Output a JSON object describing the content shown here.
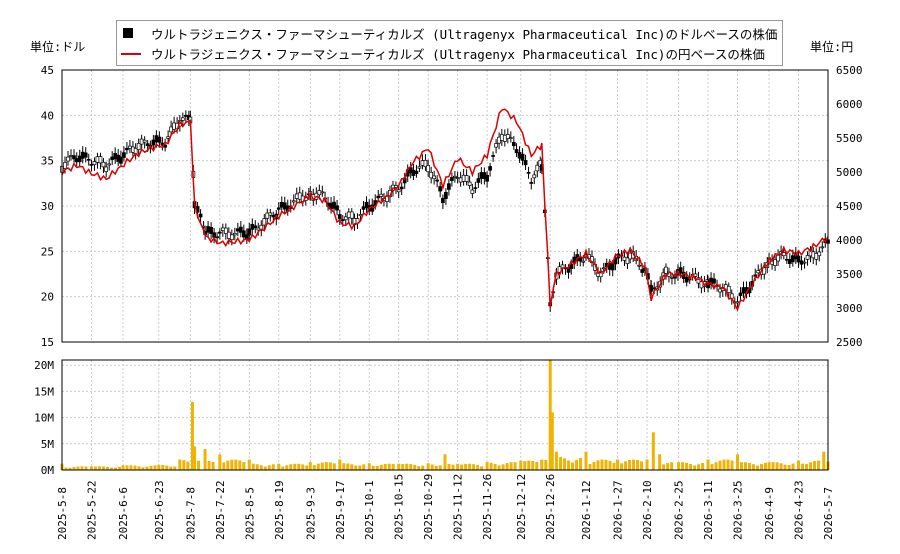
{
  "chart_data": [
    {
      "type": "candlestick",
      "legend": {
        "entries": [
          "ウルトラジェニクス・ファーマシューティカルズ (Ultragenyx Pharmaceutical Inc)のドルベースの株価",
          "ウルトラジェニクス・ファーマシューティカルズ (Ultragenyx Pharmaceutical Inc)の円ベースの株価"
        ],
        "placement": "top-center"
      },
      "left_axis": {
        "unit_label": "単位:ドル",
        "range": [
          15,
          45
        ],
        "ticks": [
          "15",
          "20",
          "25",
          "30",
          "35",
          "40",
          "45"
        ]
      },
      "right_axis": {
        "unit_label": "単位:円",
        "range": [
          2500,
          6500
        ],
        "ticks": [
          "2500",
          "3000",
          "3500",
          "4000",
          "4500",
          "5000",
          "5500",
          "6000",
          "6500"
        ]
      },
      "grid": true,
      "series": [
        {
          "name": "ウルトラジェニクス・ファーマシューティカルズ (Ultragenyx Pharmaceutical Inc)のドルベースの株価",
          "color": "#000000",
          "points": [
            [
              "2025-05-08",
              34.5
            ],
            [
              "2025-05-15",
              35.5
            ],
            [
              "2025-05-22",
              35.0
            ],
            [
              "2025-05-29",
              34.5
            ],
            [
              "2025-06-05",
              35.5
            ],
            [
              "2025-06-12",
              36.5
            ],
            [
              "2025-06-19",
              37.0
            ],
            [
              "2025-06-26",
              37.0
            ],
            [
              "2025-07-03",
              39.5
            ],
            [
              "2025-07-08",
              39.5
            ],
            [
              "2025-07-10",
              30.5
            ],
            [
              "2025-07-15",
              27.0
            ],
            [
              "2025-07-22",
              27.0
            ],
            [
              "2025-08-05",
              27.0
            ],
            [
              "2025-08-19",
              29.5
            ],
            [
              "2025-09-03",
              31.5
            ],
            [
              "2025-09-10",
              31.0
            ],
            [
              "2025-09-17",
              29.0
            ],
            [
              "2025-09-24",
              28.5
            ],
            [
              "2025-10-01",
              30.0
            ],
            [
              "2025-10-08",
              31.0
            ],
            [
              "2025-10-15",
              32.0
            ],
            [
              "2025-10-22",
              34.0
            ],
            [
              "2025-10-29",
              34.5
            ],
            [
              "2025-11-05",
              31.0
            ],
            [
              "2025-11-12",
              33.5
            ],
            [
              "2025-11-19",
              32.0
            ],
            [
              "2025-11-26",
              33.5
            ],
            [
              "2025-12-03",
              38.0
            ],
            [
              "2025-12-10",
              36.5
            ],
            [
              "2025-12-17",
              33.0
            ],
            [
              "2025-12-22",
              34.5
            ],
            [
              "2025-12-26",
              19.5
            ],
            [
              "2025-12-29",
              22.5
            ],
            [
              "2026-01-05",
              23.5
            ],
            [
              "2026-01-12",
              24.5
            ],
            [
              "2026-01-19",
              22.5
            ],
            [
              "2026-01-26",
              24.0
            ],
            [
              "2026-02-02",
              24.5
            ],
            [
              "2026-02-09",
              23.0
            ],
            [
              "2026-02-12",
              20.5
            ],
            [
              "2026-02-19",
              22.5
            ],
            [
              "2026-02-26",
              22.5
            ],
            [
              "2026-03-05",
              22.0
            ],
            [
              "2026-03-11",
              21.5
            ],
            [
              "2026-03-18",
              21.0
            ],
            [
              "2026-03-25",
              19.5
            ],
            [
              "2026-04-01",
              21.5
            ],
            [
              "2026-04-09",
              24.0
            ],
            [
              "2026-04-16",
              24.5
            ],
            [
              "2026-04-23",
              24.0
            ],
            [
              "2026-04-30",
              24.5
            ],
            [
              "2026-05-07",
              26.0
            ]
          ]
        },
        {
          "name": "ウルトラジェニクス・ファーマシューティカルズ (Ultragenyx Pharmaceutical Inc)の円ベースの株価",
          "color": "#dd0000",
          "points": [
            [
              "2025-05-08",
              5000
            ],
            [
              "2025-05-15",
              5100
            ],
            [
              "2025-05-22",
              4980
            ],
            [
              "2025-05-29",
              4900
            ],
            [
              "2025-06-05",
              5080
            ],
            [
              "2025-06-12",
              5250
            ],
            [
              "2025-06-19",
              5350
            ],
            [
              "2025-06-26",
              5400
            ],
            [
              "2025-07-03",
              5700
            ],
            [
              "2025-07-08",
              5730
            ],
            [
              "2025-07-10",
              4500
            ],
            [
              "2025-07-15",
              4050
            ],
            [
              "2025-07-22",
              3950
            ],
            [
              "2025-08-05",
              4000
            ],
            [
              "2025-08-19",
              4350
            ],
            [
              "2025-09-03",
              4650
            ],
            [
              "2025-09-10",
              4580
            ],
            [
              "2025-09-17",
              4250
            ],
            [
              "2025-09-24",
              4200
            ],
            [
              "2025-10-01",
              4450
            ],
            [
              "2025-10-08",
              4600
            ],
            [
              "2025-10-15",
              4800
            ],
            [
              "2025-10-22",
              5150
            ],
            [
              "2025-10-29",
              5350
            ],
            [
              "2025-11-05",
              4800
            ],
            [
              "2025-11-12",
              5200
            ],
            [
              "2025-11-19",
              5000
            ],
            [
              "2025-11-26",
              5250
            ],
            [
              "2025-12-03",
              5950
            ],
            [
              "2025-12-10",
              5750
            ],
            [
              "2025-12-17",
              5250
            ],
            [
              "2025-12-22",
              5400
            ],
            [
              "2025-12-26",
              3050
            ],
            [
              "2025-12-29",
              3500
            ],
            [
              "2026-01-05",
              3650
            ],
            [
              "2026-01-12",
              3800
            ],
            [
              "2026-01-19",
              3500
            ],
            [
              "2026-01-26",
              3750
            ],
            [
              "2026-02-02",
              3850
            ],
            [
              "2026-02-09",
              3600
            ],
            [
              "2026-02-12",
              3150
            ],
            [
              "2026-02-19",
              3500
            ],
            [
              "2026-02-26",
              3500
            ],
            [
              "2026-03-05",
              3450
            ],
            [
              "2026-03-11",
              3350
            ],
            [
              "2026-03-18",
              3300
            ],
            [
              "2026-03-25",
              3000
            ],
            [
              "2026-04-01",
              3350
            ],
            [
              "2026-04-09",
              3700
            ],
            [
              "2026-04-16",
              3850
            ],
            [
              "2026-04-23",
              3800
            ],
            [
              "2026-04-30",
              3900
            ],
            [
              "2026-05-07",
              4050
            ]
          ]
        }
      ]
    },
    {
      "type": "bar",
      "y_range": [
        0,
        21000000
      ],
      "y_ticks": [
        "0M",
        "5M",
        "10M",
        "15M",
        "20M"
      ],
      "x_ticks": [
        "2025-5-8",
        "2025-5-22",
        "2025-6-6",
        "2025-6-23",
        "2025-7-8",
        "2025-7-22",
        "2025-8-5",
        "2025-8-19",
        "2025-9-3",
        "2025-9-17",
        "2025-10-1",
        "2025-10-15",
        "2025-10-29",
        "2025-11-12",
        "2025-11-26",
        "2025-12-12",
        "2025-12-26",
        "2026-1-12",
        "2026-1-27",
        "2026-2-10",
        "2026-2-25",
        "2026-3-11",
        "2026-3-25",
        "2026-4-9",
        "2026-4-23",
        "2026-5-7"
      ],
      "color": "#f0b400",
      "series": [
        {
          "points": [
            [
              "2025-05-08",
              1200000
            ],
            [
              "2025-05-22",
              700000
            ],
            [
              "2025-06-06",
              900000
            ],
            [
              "2025-06-23",
              1000000
            ],
            [
              "2025-07-03",
              2000000
            ],
            [
              "2025-07-09",
              13000000
            ],
            [
              "2025-07-10",
              4500000
            ],
            [
              "2025-07-15",
              4000000
            ],
            [
              "2025-07-22",
              3000000
            ],
            [
              "2025-08-05",
              2000000
            ],
            [
              "2025-08-19",
              1200000
            ],
            [
              "2025-09-03",
              1500000
            ],
            [
              "2025-09-17",
              2000000
            ],
            [
              "2025-10-01",
              1300000
            ],
            [
              "2025-10-15",
              1200000
            ],
            [
              "2025-10-29",
              1300000
            ],
            [
              "2025-11-06",
              3000000
            ],
            [
              "2025-11-12",
              1200000
            ],
            [
              "2025-11-26",
              1500000
            ],
            [
              "2025-12-12",
              1800000
            ],
            [
              "2025-12-22",
              2000000
            ],
            [
              "2025-12-26",
              21000000
            ],
            [
              "2025-12-27",
              11000000
            ],
            [
              "2025-12-29",
              3500000
            ],
            [
              "2026-01-12",
              3500000
            ],
            [
              "2026-01-27",
              2000000
            ],
            [
              "2026-02-10",
              2000000
            ],
            [
              "2026-02-13",
              7200000
            ],
            [
              "2026-02-16",
              3000000
            ],
            [
              "2026-02-25",
              1500000
            ],
            [
              "2026-03-11",
              2000000
            ],
            [
              "2026-03-25",
              3000000
            ],
            [
              "2026-04-09",
              1500000
            ],
            [
              "2026-04-23",
              1800000
            ],
            [
              "2026-05-05",
              3500000
            ],
            [
              "2026-05-07",
              1600000
            ]
          ]
        }
      ]
    }
  ]
}
